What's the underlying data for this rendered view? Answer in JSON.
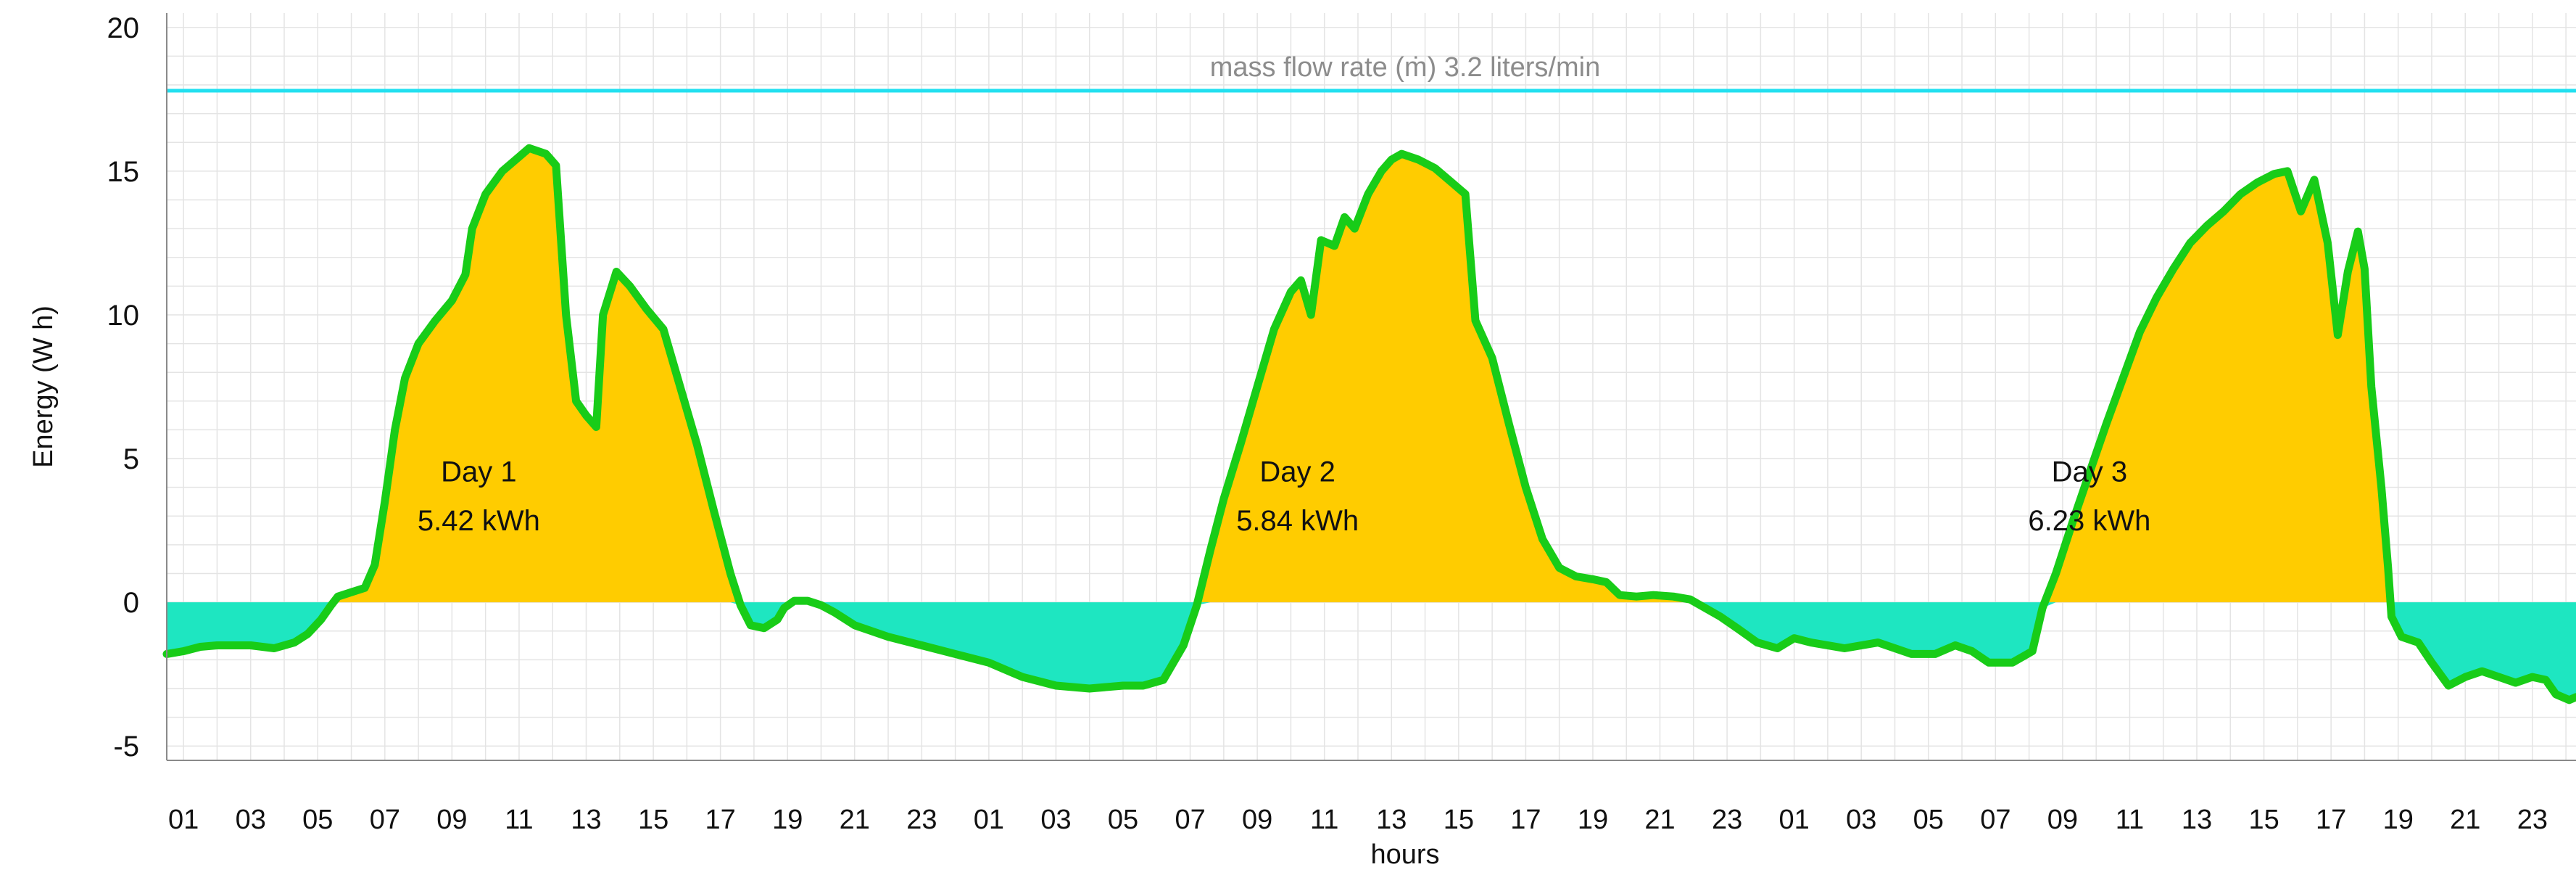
{
  "chart_data": {
    "type": "area",
    "title": "",
    "xlabel": "hours",
    "ylabel": "Energy (W h)",
    "ylim": [
      -5.5,
      20.5
    ],
    "yticks": [
      -5,
      0,
      5,
      10,
      15,
      20
    ],
    "xlim": [
      0.5,
      72.3
    ],
    "x_tick_labels": [
      "01",
      "03",
      "05",
      "07",
      "09",
      "11",
      "13",
      "15",
      "17",
      "19",
      "21",
      "23",
      "01",
      "03",
      "05",
      "07",
      "09",
      "11",
      "13",
      "15",
      "17",
      "19",
      "21",
      "23",
      "01",
      "03",
      "05",
      "07",
      "09",
      "11",
      "13",
      "15",
      "17",
      "19",
      "21",
      "23"
    ],
    "reference_line": {
      "value": 17.8,
      "label": "mass flow rate (ṁ) 3.2 liters/min",
      "color": "#22e0f0"
    },
    "colors": {
      "positive_fill": "#ffcc00",
      "negative_fill": "#1ee6c1",
      "line": "#18cc18"
    },
    "annotations": [
      {
        "name": "Day 1",
        "value": "5.42 kWh",
        "x": 9.8,
        "y_day": 4.2,
        "y_value": 2.5
      },
      {
        "name": "Day 2",
        "value": "5.84 kWh",
        "x": 34.2,
        "y_day": 4.2,
        "y_value": 2.5
      },
      {
        "name": "Day 3",
        "value": "6.23 kWh",
        "x": 57.8,
        "y_day": 4.2,
        "y_value": 2.5
      }
    ],
    "series": [
      {
        "name": "Energy",
        "points": [
          [
            0.5,
            -1.8
          ],
          [
            1.0,
            -1.7
          ],
          [
            1.5,
            -1.55
          ],
          [
            2,
            -1.5
          ],
          [
            3,
            -1.5
          ],
          [
            3.7,
            -1.6
          ],
          [
            4.3,
            -1.4
          ],
          [
            4.7,
            -1.1
          ],
          [
            5.1,
            -0.6
          ],
          [
            5.4,
            -0.1
          ],
          [
            5.6,
            0.2
          ],
          [
            6.0,
            0.35
          ],
          [
            6.4,
            0.5
          ],
          [
            6.7,
            1.3
          ],
          [
            7.0,
            3.5
          ],
          [
            7.3,
            6.0
          ],
          [
            7.6,
            7.8
          ],
          [
            8.0,
            9.0
          ],
          [
            8.5,
            9.8
          ],
          [
            9.0,
            10.5
          ],
          [
            9.4,
            11.4
          ],
          [
            9.6,
            13.0
          ],
          [
            10.0,
            14.2
          ],
          [
            10.5,
            15.0
          ],
          [
            11.0,
            15.5
          ],
          [
            11.3,
            15.8
          ],
          [
            11.8,
            15.6
          ],
          [
            12.1,
            15.2
          ],
          [
            12.4,
            10.0
          ],
          [
            12.7,
            7.0
          ],
          [
            13.0,
            6.5
          ],
          [
            13.3,
            6.1
          ],
          [
            13.5,
            10.0
          ],
          [
            13.9,
            11.5
          ],
          [
            14.3,
            11.0
          ],
          [
            14.8,
            10.2
          ],
          [
            15.3,
            9.5
          ],
          [
            15.8,
            7.5
          ],
          [
            16.3,
            5.5
          ],
          [
            16.8,
            3.2
          ],
          [
            17.3,
            1.0
          ],
          [
            17.6,
            -0.1
          ],
          [
            17.9,
            -0.8
          ],
          [
            18.3,
            -0.9
          ],
          [
            18.7,
            -0.6
          ],
          [
            18.9,
            -0.2
          ],
          [
            19.2,
            0.05
          ],
          [
            19.6,
            0.05
          ],
          [
            20.0,
            -0.1
          ],
          [
            20.4,
            -0.35
          ],
          [
            21.0,
            -0.8
          ],
          [
            22.0,
            -1.2
          ],
          [
            23.0,
            -1.5
          ],
          [
            24.0,
            -1.8
          ],
          [
            25.0,
            -2.1
          ],
          [
            26.0,
            -2.6
          ],
          [
            27.0,
            -2.9
          ],
          [
            28.0,
            -3.0
          ],
          [
            29.0,
            -2.9
          ],
          [
            29.6,
            -2.9
          ],
          [
            30.2,
            -2.7
          ],
          [
            30.8,
            -1.5
          ],
          [
            31.2,
            -0.1
          ],
          [
            31.6,
            1.8
          ],
          [
            32.0,
            3.6
          ],
          [
            32.5,
            5.5
          ],
          [
            33.0,
            7.5
          ],
          [
            33.5,
            9.5
          ],
          [
            34.0,
            10.8
          ],
          [
            34.3,
            11.2
          ],
          [
            34.6,
            10.0
          ],
          [
            34.9,
            12.6
          ],
          [
            35.3,
            12.4
          ],
          [
            35.6,
            13.4
          ],
          [
            35.9,
            13.0
          ],
          [
            36.3,
            14.2
          ],
          [
            36.7,
            15.0
          ],
          [
            37.0,
            15.4
          ],
          [
            37.3,
            15.6
          ],
          [
            37.8,
            15.4
          ],
          [
            38.3,
            15.1
          ],
          [
            38.8,
            14.6
          ],
          [
            39.2,
            14.2
          ],
          [
            39.5,
            9.8
          ],
          [
            40.0,
            8.5
          ],
          [
            40.5,
            6.2
          ],
          [
            41.0,
            4.0
          ],
          [
            41.5,
            2.2
          ],
          [
            42.0,
            1.2
          ],
          [
            42.5,
            0.9
          ],
          [
            43.0,
            0.8
          ],
          [
            43.4,
            0.7
          ],
          [
            43.8,
            0.25
          ],
          [
            44.3,
            0.2
          ],
          [
            44.8,
            0.25
          ],
          [
            45.4,
            0.2
          ],
          [
            45.9,
            0.1
          ],
          [
            46.2,
            -0.1
          ],
          [
            46.8,
            -0.5
          ],
          [
            47.3,
            -0.9
          ],
          [
            47.9,
            -1.4
          ],
          [
            48.5,
            -1.6
          ],
          [
            49.0,
            -1.25
          ],
          [
            49.5,
            -1.4
          ],
          [
            50.5,
            -1.6
          ],
          [
            51.5,
            -1.4
          ],
          [
            52.5,
            -1.8
          ],
          [
            53.2,
            -1.8
          ],
          [
            53.8,
            -1.5
          ],
          [
            54.3,
            -1.7
          ],
          [
            54.8,
            -2.1
          ],
          [
            55.5,
            -2.1
          ],
          [
            56.1,
            -1.7
          ],
          [
            56.4,
            -0.2
          ],
          [
            56.8,
            1.0
          ],
          [
            57.3,
            2.8
          ],
          [
            57.8,
            4.5
          ],
          [
            58.3,
            6.2
          ],
          [
            58.8,
            7.8
          ],
          [
            59.3,
            9.4
          ],
          [
            59.8,
            10.6
          ],
          [
            60.3,
            11.6
          ],
          [
            60.8,
            12.5
          ],
          [
            61.3,
            13.1
          ],
          [
            61.8,
            13.6
          ],
          [
            62.3,
            14.2
          ],
          [
            62.8,
            14.6
          ],
          [
            63.3,
            14.9
          ],
          [
            63.7,
            15.0
          ],
          [
            64.1,
            13.6
          ],
          [
            64.5,
            14.7
          ],
          [
            64.9,
            12.5
          ],
          [
            65.2,
            9.3
          ],
          [
            65.5,
            11.5
          ],
          [
            65.8,
            12.9
          ],
          [
            66.0,
            11.6
          ],
          [
            66.2,
            7.5
          ],
          [
            66.5,
            4.0
          ],
          [
            66.7,
            1.2
          ],
          [
            66.8,
            -0.5
          ],
          [
            67.1,
            -1.2
          ],
          [
            67.6,
            -1.4
          ],
          [
            68.0,
            -2.1
          ],
          [
            68.5,
            -2.9
          ],
          [
            69.0,
            -2.6
          ],
          [
            69.5,
            -2.4
          ],
          [
            70.0,
            -2.6
          ],
          [
            70.5,
            -2.8
          ],
          [
            71.0,
            -2.6
          ],
          [
            71.4,
            -2.7
          ],
          [
            71.7,
            -3.2
          ],
          [
            72.1,
            -3.4
          ],
          [
            72.3,
            -3.3
          ]
        ]
      }
    ]
  }
}
